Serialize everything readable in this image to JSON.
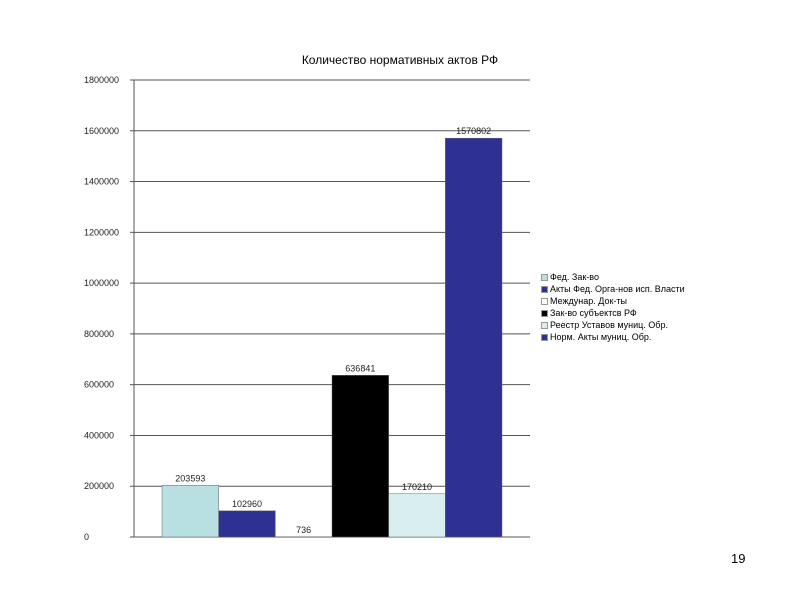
{
  "chart_data": {
    "type": "bar",
    "title": "Количество нормативных актов РФ",
    "xlabel": "",
    "ylabel": "",
    "ylim": [
      0,
      1800000
    ],
    "yticks": [
      0,
      200000,
      400000,
      600000,
      800000,
      1000000,
      1200000,
      1400000,
      1600000,
      1800000
    ],
    "grid": true,
    "legend_position": "right",
    "series": [
      {
        "name": "Фед. Зак-во",
        "value": 203593,
        "label": "203593",
        "color": "#b8e0e3"
      },
      {
        "name": "Акты Фед. Орга-нов исп. Власти",
        "value": 102960,
        "label": "102960",
        "color": "#2e3192"
      },
      {
        "name": "Междунар. Док-ты",
        "value": 736,
        "label": "736",
        "color": "#ffffff"
      },
      {
        "name": "Зак-во субъектсв РФ",
        "value": 636841,
        "label": "636841",
        "color": "#000000"
      },
      {
        "name": "Реестр Уставов муниц. Обр.",
        "value": 170210,
        "label": "170210",
        "color": "#d9eeef"
      },
      {
        "name": "Норм. Акты муниц. Обр.",
        "value": 1570802,
        "label": "1570802",
        "color": "#2e3192"
      }
    ]
  },
  "slide": {
    "page_number": "19"
  }
}
